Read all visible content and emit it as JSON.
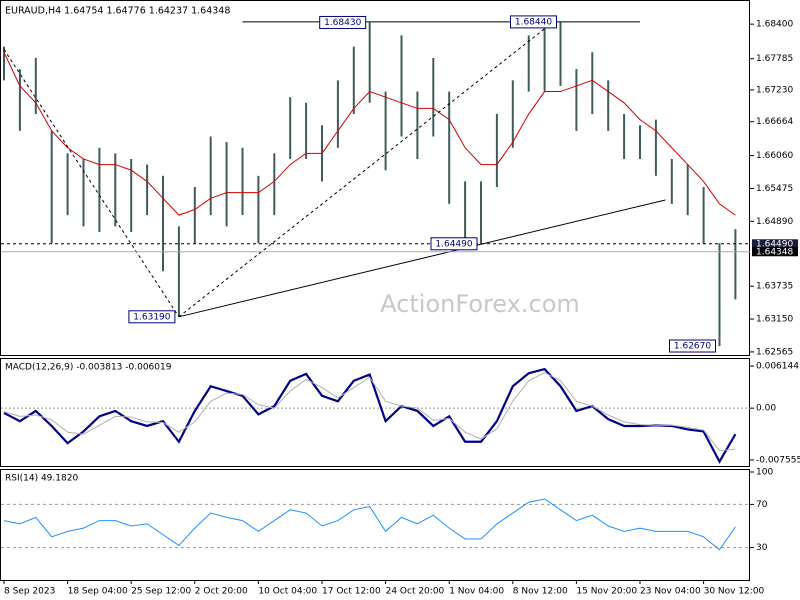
{
  "chart_data": [
    {
      "type": "hilo",
      "title": "EURAUD,H4  1.64754 1.64776 1.64237 1.64348",
      "watermark": "ActionForex.com",
      "color": "#3e5c5c",
      "high": [
        1.68,
        1.676,
        1.678,
        1.665,
        1.661,
        1.66,
        1.662,
        1.661,
        1.66,
        1.659,
        1.657,
        1.648,
        1.655,
        1.664,
        1.663,
        1.662,
        1.657,
        1.661,
        1.671,
        1.67,
        1.666,
        1.674,
        1.68,
        1.6843,
        1.672,
        1.682,
        1.672,
        1.678,
        1.672,
        1.656,
        1.656,
        1.668,
        1.674,
        1.682,
        1.684,
        1.6844,
        1.676,
        1.679,
        1.674,
        1.668,
        1.666,
        1.667,
        1.66,
        1.659,
        1.655,
        1.645,
        1.6475
      ],
      "low": [
        1.674,
        1.665,
        1.668,
        1.645,
        1.65,
        1.648,
        1.647,
        1.648,
        1.647,
        1.65,
        1.64,
        1.6319,
        1.645,
        1.65,
        1.648,
        1.65,
        1.645,
        1.65,
        1.66,
        1.66,
        1.656,
        1.662,
        1.668,
        1.67,
        1.658,
        1.664,
        1.66,
        1.664,
        1.652,
        1.645,
        1.6449,
        1.655,
        1.662,
        1.672,
        1.672,
        1.673,
        1.665,
        1.668,
        1.665,
        1.66,
        1.66,
        1.657,
        1.652,
        1.65,
        1.645,
        1.6267,
        1.635
      ],
      "ma": {
        "color": "#d40000",
        "values": [
          1.679,
          1.673,
          1.67,
          1.665,
          1.662,
          1.66,
          1.659,
          1.659,
          1.658,
          1.656,
          1.653,
          1.65,
          1.651,
          1.653,
          1.654,
          1.654,
          1.654,
          1.656,
          1.659,
          1.661,
          1.661,
          1.665,
          1.669,
          1.672,
          1.671,
          1.67,
          1.669,
          1.669,
          1.667,
          1.662,
          1.659,
          1.659,
          1.663,
          1.668,
          1.672,
          1.672,
          1.673,
          1.674,
          1.672,
          1.67,
          1.667,
          1.665,
          1.662,
          1.659,
          1.656,
          1.652,
          1.65
        ]
      },
      "ylim": [
        1.6251,
        1.6883
      ],
      "yticks": [
        {
          "value": 1.684,
          "label": "1.68400"
        },
        {
          "value": 1.67785,
          "label": "1.67785"
        },
        {
          "value": 1.6723,
          "label": "1.67230"
        },
        {
          "value": 1.66664,
          "label": "1.66664"
        },
        {
          "value": 1.6606,
          "label": "1.66060"
        },
        {
          "value": 1.65475,
          "label": "1.65475"
        },
        {
          "value": 1.6489,
          "label": "1.64890"
        },
        {
          "value": 1.63735,
          "label": "1.63735"
        },
        {
          "value": 1.6315,
          "label": "1.63150"
        },
        {
          "value": 1.62565,
          "label": "1.62565"
        }
      ],
      "levels": [
        {
          "value": 1.6449,
          "label": "1.64490",
          "style": "dashed"
        },
        {
          "value": 1.64348,
          "label": "1.64348",
          "style": "current"
        }
      ],
      "annotations": [
        {
          "x": 23,
          "y": 1.6843,
          "label": "1.68430"
        },
        {
          "x": 35,
          "y": 1.6844,
          "label": "1.68440"
        },
        {
          "x": 30,
          "y": 1.6449,
          "label": "1.64490"
        },
        {
          "x": 11,
          "y": 1.6319,
          "label": "1.63190"
        },
        {
          "x": 45,
          "y": 1.6267,
          "label": "1.62670"
        }
      ],
      "trendlines": [
        {
          "points": [
            [
              15,
              1.6844
            ],
            [
              40,
              1.6844
            ]
          ],
          "dashed": false
        },
        {
          "points": [
            [
              11,
              1.6319
            ],
            [
              41.6,
              1.6527
            ]
          ],
          "dashed": false
        },
        {
          "points": [
            [
              0,
              1.6795
            ],
            [
              11,
              1.6319
            ]
          ],
          "dashed": true
        },
        {
          "points": [
            [
              11,
              1.6319
            ],
            [
              34.5,
              1.6843
            ]
          ],
          "dashed": true
        }
      ],
      "xticks": [
        {
          "value": 0,
          "label": "8 Sep 2023"
        },
        {
          "value": 4,
          "label": "18 Sep 04:00"
        },
        {
          "value": 8,
          "label": "25 Sep 12:00"
        },
        {
          "value": 12,
          "label": "2 Oct 20:00"
        },
        {
          "value": 16,
          "label": "10 Oct 04:00"
        },
        {
          "value": 20,
          "label": "17 Oct 12:00"
        },
        {
          "value": 24,
          "label": "24 Oct 20:00"
        },
        {
          "value": 28,
          "label": "1 Nov 04:00"
        },
        {
          "value": 32,
          "label": "8 Nov 12:00"
        },
        {
          "value": 36,
          "label": "15 Nov 20:00"
        },
        {
          "value": 40,
          "label": "23 Nov 04:00"
        },
        {
          "value": 44,
          "label": "30 Nov 12:00"
        }
      ]
    },
    {
      "type": "line",
      "title": "MACD(12,26,9) -0.003813 -0.006019",
      "zero_line": true,
      "series": [
        {
          "color": "#00008b",
          "width": 2.2,
          "values": [
            -0.0007,
            -0.0019,
            -0.0004,
            -0.0026,
            -0.0051,
            -0.0034,
            -0.0012,
            -0.0004,
            -0.0019,
            -0.0026,
            -0.0019,
            -0.0049,
            -0.0004,
            0.0032,
            0.0025,
            0.0018,
            -0.0009,
            0.0003,
            0.004,
            0.005,
            0.0018,
            0.001,
            0.004,
            0.0049,
            -0.0019,
            0.0003,
            -0.0004,
            -0.0026,
            -0.0012,
            -0.0049,
            -0.0049,
            -0.0019,
            0.0032,
            0.0051,
            0.0057,
            0.0032,
            -0.0004,
            0.0003,
            -0.0016,
            -0.0026,
            -0.0026,
            -0.0025,
            -0.0026,
            -0.0031,
            -0.0034,
            -0.0078,
            -0.0038
          ]
        },
        {
          "color": "#b0b0b0",
          "width": 1,
          "values": [
            -0.0005,
            -0.0012,
            -0.001,
            -0.0017,
            -0.0035,
            -0.0038,
            -0.0025,
            -0.0012,
            -0.0013,
            -0.002,
            -0.0021,
            -0.0035,
            -0.002,
            0.001,
            0.0022,
            0.002,
            0.0005,
            0,
            0.0025,
            0.0042,
            0.003,
            0.0015,
            0.003,
            0.0045,
            0.001,
            0.0003,
            0,
            -0.0018,
            -0.0015,
            -0.0035,
            -0.0045,
            -0.003,
            0.001,
            0.004,
            0.0052,
            0.004,
            0.001,
            0.0003,
            -0.001,
            -0.002,
            -0.0024,
            -0.0025,
            -0.0025,
            -0.0028,
            -0.0032,
            -0.0062,
            -0.006
          ]
        }
      ],
      "ylim": [
        -0.00844,
        0.00732
      ],
      "yticks": [
        {
          "value": 0.006144,
          "label": "0.006144"
        },
        {
          "value": 0,
          "label": "0.00"
        },
        {
          "value": -0.007555,
          "label": "-0.007555"
        }
      ]
    },
    {
      "type": "line",
      "title": "RSI(14) 49.1820",
      "grid": true,
      "series": [
        {
          "color": "#1e90ff",
          "width": 1,
          "values": [
            55,
            52,
            58,
            40,
            45,
            48,
            55,
            55,
            50,
            52,
            42,
            32,
            48,
            62,
            58,
            55,
            45,
            55,
            65,
            62,
            50,
            55,
            65,
            68,
            45,
            58,
            52,
            60,
            48,
            38,
            38,
            52,
            62,
            72,
            75,
            65,
            55,
            60,
            50,
            45,
            48,
            45,
            45,
            45,
            40,
            28,
            49.182
          ]
        }
      ],
      "ylim": [
        0,
        100
      ],
      "yticks": [
        100,
        70,
        30
      ]
    }
  ]
}
